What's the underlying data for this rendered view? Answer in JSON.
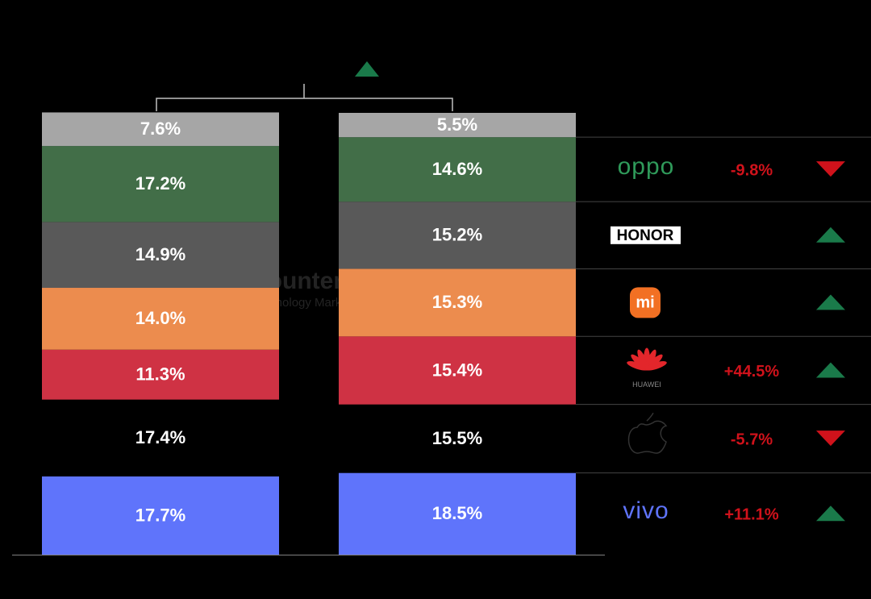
{
  "chart_data": {
    "type": "stacked_bar",
    "categories": [
      null,
      null
    ],
    "ylim": [
      0,
      100
    ],
    "watermark": [
      "Counterpoint",
      "Technology Market Research"
    ],
    "series": [
      {
        "name": "vivo",
        "color": "#5f74fb",
        "values": [
          17.7,
          18.5
        ],
        "value_labels": [
          "17.7%",
          "18.5%"
        ],
        "change": "+11.1%",
        "trend": "up"
      },
      {
        "color": "#000000",
        "values": [
          17.4,
          15.5
        ],
        "value_labels": [
          "17.4%",
          "15.5%"
        ],
        "change": "-5.7%",
        "trend": "down"
      },
      {
        "name": "HUAWEI",
        "color": "#cf3244",
        "values": [
          11.3,
          15.4
        ],
        "value_labels": [
          "11.3%",
          "15.4%"
        ],
        "change": "+44.5%",
        "trend": "up"
      },
      {
        "name": "mi",
        "color": "#ec8c4e",
        "values": [
          14.0,
          15.3
        ],
        "value_labels": [
          "14.0%",
          "15.3%"
        ],
        "trend": "up"
      },
      {
        "name": "HONOR",
        "color": "#595959",
        "values": [
          14.9,
          15.2
        ],
        "value_labels": [
          "14.9%",
          "15.2%"
        ],
        "trend": "up"
      },
      {
        "name": "oppo",
        "color": "#426e48",
        "values": [
          17.2,
          14.6
        ],
        "value_labels": [
          "17.2%",
          "14.6%"
        ],
        "change": "-9.8%",
        "trend": "down"
      },
      {
        "color": "#a6a6a6",
        "values": [
          7.6,
          5.5
        ],
        "value_labels": [
          "7.6%",
          "5.5%"
        ]
      }
    ]
  }
}
